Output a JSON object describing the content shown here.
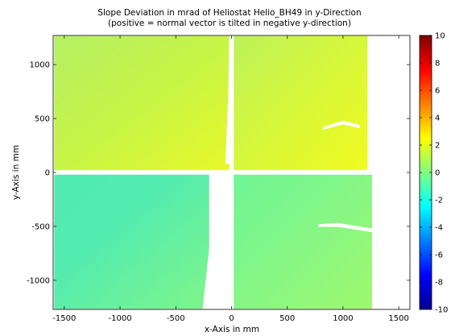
{
  "chart_data": {
    "type": "heatmap",
    "title": "Slope Deviation in mrad of Heliostat Helio_BH49 in y-Direction",
    "subtitle": "(positive = normal vector is tilted in negative y-direction)",
    "xlabel": "x-Axis in mm",
    "ylabel": "y-Axis in mm",
    "xlim": [
      -1600,
      1600
    ],
    "ylim": [
      -1270,
      1270
    ],
    "xticks": [
      -1500,
      -1000,
      -500,
      0,
      500,
      1000,
      1500
    ],
    "yticks": [
      -1000,
      -500,
      0,
      500,
      1000
    ],
    "colorbar": {
      "min": -10,
      "max": 10,
      "ticks": [
        10,
        8,
        6,
        4,
        2,
        0,
        -2,
        -4,
        -6,
        -8,
        -10
      ],
      "colormap": "jet"
    },
    "facets": [
      {
        "name": "upper-left",
        "x": [
          -1590,
          -20
        ],
        "y": [
          20,
          1265
        ],
        "typical_value": 1.0
      },
      {
        "name": "upper-right",
        "x": [
          20,
          1220
        ],
        "y": [
          20,
          1265
        ],
        "typical_value": 1.5
      },
      {
        "name": "lower-left",
        "x": [
          -1590,
          -200
        ],
        "y": [
          -1265,
          -20
        ],
        "typical_value": -1.0
      },
      {
        "name": "lower-right",
        "x": [
          20,
          1260
        ],
        "y": [
          -1265,
          -20
        ],
        "typical_value": -0.6
      }
    ],
    "colors": {
      "upper_facets": "#c8f53c",
      "lower_facets": "#5ef5a0",
      "gap": "#ffffff"
    }
  }
}
